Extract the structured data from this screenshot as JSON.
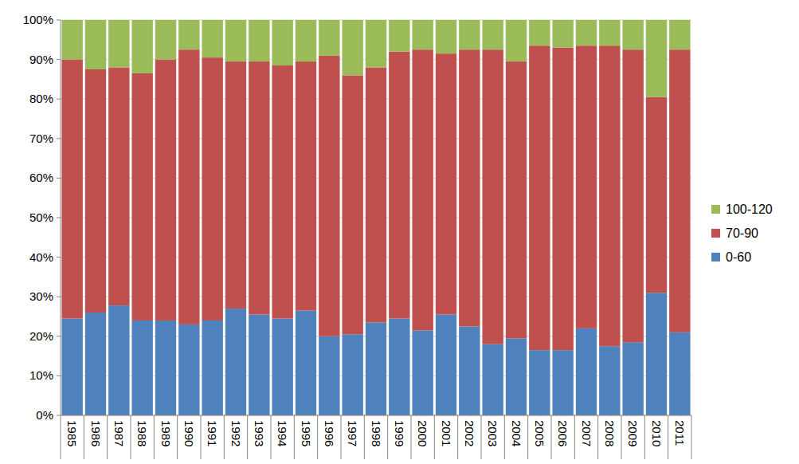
{
  "chart_data": {
    "type": "bar",
    "stacked": true,
    "grid": true,
    "legend": "right",
    "categories": [
      "1985",
      "1986",
      "1987",
      "1988",
      "1989",
      "1990",
      "1991",
      "1992",
      "1993",
      "1994",
      "1995",
      "1996",
      "1997",
      "1998",
      "1999",
      "2000",
      "2001",
      "2002",
      "2003",
      "2004",
      "2005",
      "2006",
      "2007",
      "2008",
      "2009",
      "2010",
      "2011"
    ],
    "series": [
      {
        "name": "0-60",
        "color": "#4f81bd",
        "values": [
          24.5,
          26,
          27.8,
          24,
          24,
          23,
          24,
          27,
          25.5,
          24.5,
          26.5,
          20,
          20.5,
          23.5,
          24.5,
          21.5,
          25.5,
          22.5,
          18,
          19.5,
          16.5,
          16.5,
          22,
          17.5,
          18.5,
          31,
          21
        ]
      },
      {
        "name": "70-90",
        "color": "#c0504d",
        "values": [
          65.5,
          61.5,
          60.2,
          62.5,
          66,
          69.5,
          66.5,
          62.5,
          64,
          64,
          63,
          71,
          65.5,
          64.5,
          67.5,
          71,
          66,
          70,
          74.5,
          70,
          77,
          76.5,
          71.5,
          76,
          74,
          49.5,
          71.5
        ]
      },
      {
        "name": "100-120",
        "color": "#9bbb59",
        "values": [
          10,
          12.5,
          12,
          13.5,
          10,
          7.5,
          9.5,
          10.5,
          10.5,
          11.5,
          10.5,
          9,
          14,
          12,
          8,
          7.5,
          8.5,
          7.5,
          7.5,
          10.5,
          6.5,
          7,
          6.5,
          6.5,
          7.5,
          19.5,
          7.5
        ]
      }
    ],
    "ylim": [
      0,
      100
    ],
    "yticks": [
      {
        "value": 0,
        "label": "0%"
      },
      {
        "value": 10,
        "label": "10%"
      },
      {
        "value": 20,
        "label": "20%"
      },
      {
        "value": 30,
        "label": "30%"
      },
      {
        "value": 40,
        "label": "40%"
      },
      {
        "value": 50,
        "label": "50%"
      },
      {
        "value": 60,
        "label": "60%"
      },
      {
        "value": 70,
        "label": "70%"
      },
      {
        "value": 80,
        "label": "80%"
      },
      {
        "value": 90,
        "label": "90%"
      },
      {
        "value": 100,
        "label": "100%"
      }
    ]
  }
}
